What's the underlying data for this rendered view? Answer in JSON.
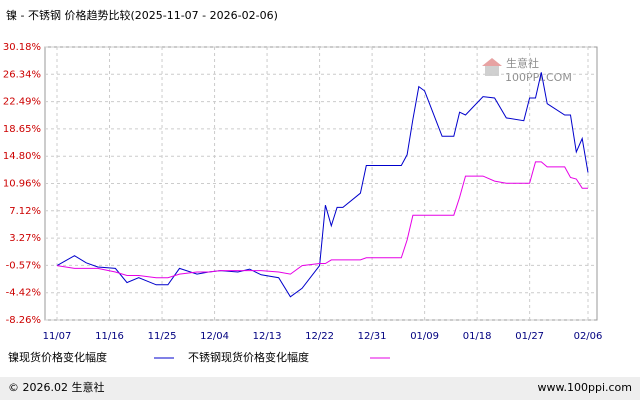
{
  "chart_data": {
    "type": "line",
    "title": "镍 - 不锈钢  价格趋势比较(2025-11-07 - 2026-02-06)",
    "x": [
      "11/07",
      "11/10",
      "11/12",
      "11/14",
      "11/17",
      "11/19",
      "11/21",
      "11/24",
      "11/26",
      "11/28",
      "12/01",
      "12/03",
      "12/05",
      "12/08",
      "12/10",
      "12/12",
      "12/15",
      "12/17",
      "12/19",
      "12/22",
      "12/23",
      "12/24",
      "12/25",
      "12/26",
      "12/29",
      "12/30",
      "12/31",
      "01/05",
      "01/06",
      "01/07",
      "01/08",
      "01/09",
      "01/12",
      "01/14",
      "01/15",
      "01/16",
      "01/19",
      "01/21",
      "01/23",
      "01/26",
      "01/27",
      "01/28",
      "01/29",
      "01/30",
      "02/02",
      "02/03",
      "02/04",
      "02/05",
      "02/06"
    ],
    "series": [
      {
        "name": "镍现货价格变化幅度",
        "color": "#0000cc",
        "values": [
          -0.6,
          0.8,
          -0.2,
          -0.8,
          -1.0,
          -3.0,
          -2.3,
          -3.3,
          -3.3,
          -1.0,
          -1.8,
          -1.5,
          -1.3,
          -1.5,
          -1.1,
          -1.9,
          -2.3,
          -5.0,
          -3.8,
          -0.6,
          7.9,
          5.0,
          7.6,
          7.6,
          9.6,
          13.5,
          13.5,
          13.5,
          15.0,
          20.0,
          24.6,
          24.0,
          17.6,
          17.6,
          21.0,
          20.6,
          23.2,
          23.0,
          20.2,
          19.8,
          23.0,
          23.0,
          26.6,
          22.2,
          20.6,
          20.6,
          15.4,
          17.3,
          12.5
        ]
      },
      {
        "name": "不锈钢现货价格变化幅度",
        "color": "#e600e6",
        "values": [
          -0.6,
          -1.0,
          -1.0,
          -1.0,
          -1.5,
          -2.0,
          -2.0,
          -2.3,
          -2.3,
          -1.8,
          -1.5,
          -1.5,
          -1.3,
          -1.3,
          -1.3,
          -1.3,
          -1.5,
          -1.8,
          -0.6,
          -0.3,
          -0.3,
          0.2,
          0.2,
          0.2,
          0.2,
          0.5,
          0.5,
          0.5,
          3.0,
          6.5,
          6.5,
          6.5,
          6.5,
          6.5,
          9.0,
          12.0,
          12.0,
          11.3,
          11.0,
          11.0,
          11.0,
          14.0,
          14.0,
          13.3,
          13.3,
          11.8,
          11.6,
          10.3,
          10.3
        ]
      }
    ],
    "ylim": [
      -8.26,
      30.18
    ],
    "yticks": [
      {
        "value": 30.18,
        "label": "30.18%"
      },
      {
        "value": 26.34,
        "label": "26.34%"
      },
      {
        "value": 22.49,
        "label": "22.49%"
      },
      {
        "value": 18.65,
        "label": "18.65%"
      },
      {
        "value": 14.8,
        "label": "14.80%"
      },
      {
        "value": 10.96,
        "label": "10.96%"
      },
      {
        "value": 7.12,
        "label": "7.12%"
      },
      {
        "value": 3.27,
        "label": "3.27%"
      },
      {
        "value": -0.57,
        "label": "-0.57%"
      },
      {
        "value": -4.42,
        "label": "-4.42%"
      },
      {
        "value": -8.26,
        "label": "-8.26%"
      }
    ],
    "xticks": [
      "11/07",
      "11/16",
      "11/25",
      "12/04",
      "12/13",
      "12/22",
      "12/31",
      "01/09",
      "01/18",
      "01/27",
      "02/06"
    ],
    "grid": true,
    "watermark": {
      "name": "生意社",
      "site": "100PPI.COM"
    },
    "footer": {
      "left": "© 2026.02 生意社",
      "right": "www.100ppi.com"
    }
  }
}
